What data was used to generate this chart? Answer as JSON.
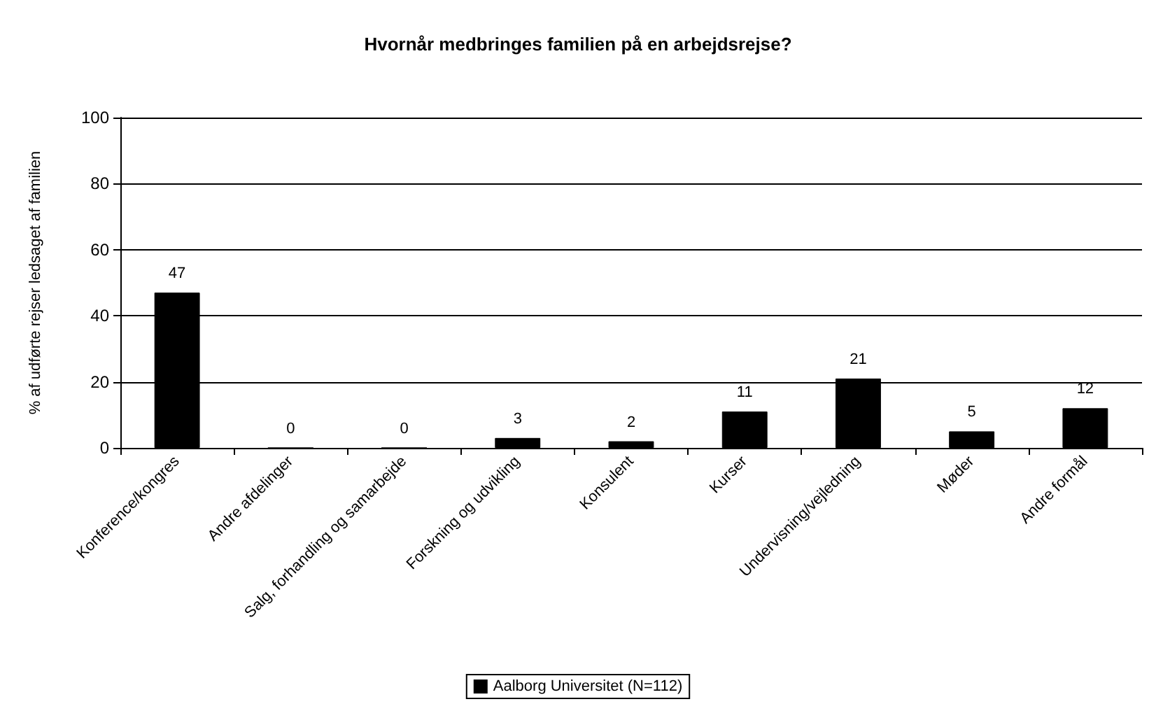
{
  "chart_data": {
    "type": "bar",
    "title": "Hvornår medbringes familien på en arbejdsrejse?",
    "ylabel": "% af udførte rejser ledsaget af familien",
    "categories": [
      "Konference/kongres",
      "Andre afdelinger",
      "Salg, forhandling og samarbejde",
      "Forskning og udvikling",
      "Konsulent",
      "Kurser",
      "Undervisning/vejledning",
      "Møder",
      "Andre formål"
    ],
    "series": [
      {
        "name": "Aalborg Universitet (N=112)",
        "color": "#000000",
        "values": [
          47,
          0,
          0,
          3,
          2,
          11,
          21,
          5,
          12
        ]
      }
    ],
    "ylim": [
      0,
      100
    ],
    "yticks": [
      0,
      20,
      40,
      60,
      80,
      100
    ],
    "grid": "y",
    "legend": "bottom",
    "data_labels": true
  }
}
